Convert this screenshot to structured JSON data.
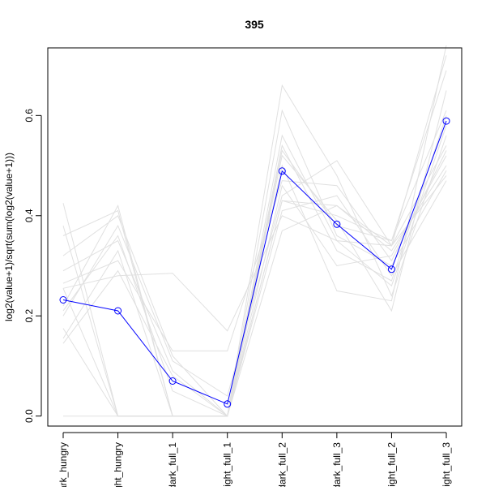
{
  "chart_data": {
    "type": "line",
    "title": "395",
    "ylabel": "log2(value+1)/sqrt(sum(log2(value+1)))",
    "xlabel": "",
    "categories": [
      "dark_hungry",
      "light_hungry",
      "dark_full_1",
      "light_full_1",
      "dark_full_2",
      "dark_full_3",
      "light_full_2",
      "light_full_3"
    ],
    "category_labels_visible": [
      "ark_hungry",
      "ght_hungry",
      "dark_full_1",
      "light_full_1",
      "dark_full_2",
      "dark_full_3",
      "light_full_2",
      "light_full_3"
    ],
    "ylim": [
      -0.02,
      0.735
    ],
    "yticks": [
      0.0,
      0.2,
      0.4,
      0.6
    ],
    "ytick_labels": [
      "0.0",
      "0.2",
      "0.4",
      "0.6"
    ],
    "grid": false,
    "highlight_series": {
      "color": "#0000ff",
      "values": [
        0.232,
        0.21,
        0.07,
        0.024,
        0.489,
        0.383,
        0.293,
        0.589
      ]
    },
    "background_series_color": "#e0e0e0",
    "background_series": [
      {
        "values": [
          0.425,
          0.0,
          0.0,
          0.0,
          0.43,
          0.42,
          0.34,
          0.72
        ]
      },
      {
        "values": [
          0.38,
          0.0,
          0.0,
          0.0,
          0.66,
          0.48,
          0.24,
          0.56
        ]
      },
      {
        "values": [
          0.36,
          0.41,
          0.0,
          0.0,
          0.52,
          0.39,
          0.21,
          0.65
        ]
      },
      {
        "values": [
          0.32,
          0.4,
          0.12,
          0.0,
          0.61,
          0.36,
          0.3,
          0.49
        ]
      },
      {
        "values": [
          0.29,
          0.35,
          0.09,
          0.0,
          0.54,
          0.33,
          0.27,
          0.6
        ]
      },
      {
        "values": [
          0.255,
          0.0,
          0.0,
          0.0,
          0.5,
          0.25,
          0.23,
          0.74
        ]
      },
      {
        "values": [
          0.22,
          0.42,
          0.0,
          0.0,
          0.46,
          0.3,
          0.32,
          0.52
        ]
      },
      {
        "values": [
          0.2,
          0.38,
          0.11,
          0.04,
          0.44,
          0.51,
          0.34,
          0.54
        ]
      },
      {
        "values": [
          0.175,
          0.0,
          0.0,
          0.0,
          0.41,
          0.44,
          0.28,
          0.47
        ]
      },
      {
        "values": [
          0.155,
          0.33,
          0.0,
          0.0,
          0.37,
          0.42,
          0.33,
          0.5
        ]
      },
      {
        "values": [
          0.145,
          0.29,
          0.08,
          0.0,
          0.56,
          0.35,
          0.26,
          0.58
        ]
      },
      {
        "values": [
          0.0,
          0.0,
          0.0,
          0.0,
          0.43,
          0.4,
          0.35,
          0.61
        ]
      },
      {
        "values": [
          0.255,
          0.28,
          0.285,
          0.17,
          0.4,
          0.35,
          0.34,
          0.48
        ]
      },
      {
        "values": [
          0.265,
          0.31,
          0.13,
          0.13,
          0.47,
          0.46,
          0.31,
          0.53
        ]
      },
      {
        "values": [
          0.21,
          0.36,
          0.05,
          0.0,
          0.53,
          0.38,
          0.35,
          0.69
        ]
      }
    ]
  }
}
